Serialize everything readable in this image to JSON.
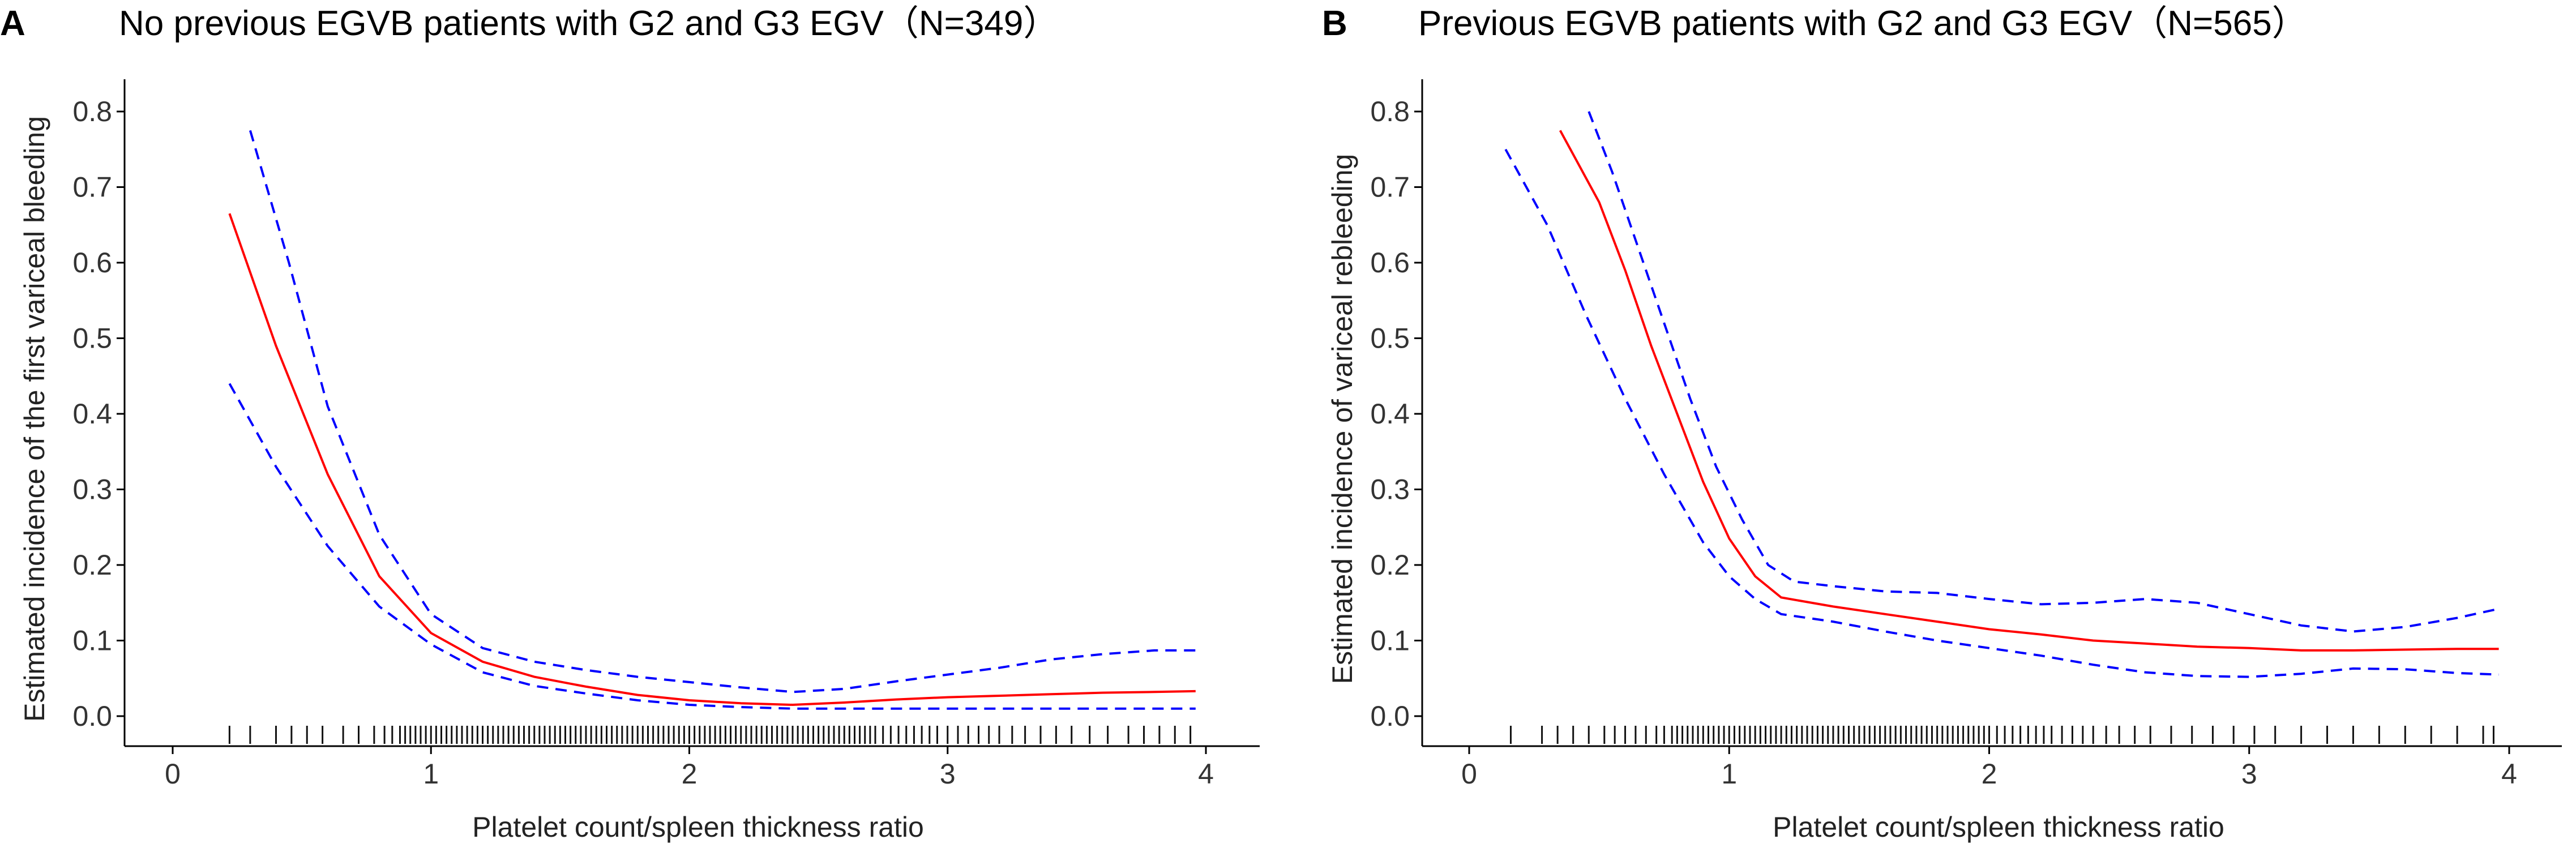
{
  "chart_data": [
    {
      "type": "line",
      "panel_label": "A",
      "title": "No previous EGVB patients with G2 and G3 EGV（N=349）",
      "xlabel": "Platelet count/spleen thickness ratio",
      "ylabel": "Estimated incidence of the first variceal bleeding",
      "xlim": [
        -0.2,
        4.2
      ],
      "ylim": [
        -0.04,
        0.84
      ],
      "x_ticks": [
        0,
        1,
        2,
        3,
        4
      ],
      "y_ticks": [
        0.0,
        0.1,
        0.2,
        0.3,
        0.4,
        0.5,
        0.6,
        0.7,
        0.8
      ],
      "x_tick_labels": [
        "0",
        "1",
        "2",
        "3",
        "4"
      ],
      "y_tick_labels": [
        "0.0",
        "0.1",
        "0.2",
        "0.3",
        "0.4",
        "0.5",
        "0.6",
        "0.7",
        "0.8"
      ],
      "series": [
        {
          "name": "Estimate",
          "style": "solid",
          "color": "#ff0000",
          "x": [
            0.22,
            0.4,
            0.6,
            0.8,
            1.0,
            1.2,
            1.4,
            1.6,
            1.8,
            2.0,
            2.2,
            2.4,
            2.6,
            2.8,
            3.0,
            3.2,
            3.4,
            3.6,
            3.8,
            3.96
          ],
          "y": [
            0.665,
            0.49,
            0.32,
            0.185,
            0.11,
            0.072,
            0.052,
            0.039,
            0.028,
            0.021,
            0.017,
            0.015,
            0.018,
            0.022,
            0.025,
            0.027,
            0.029,
            0.031,
            0.032,
            0.033
          ]
        },
        {
          "name": "Upper 95% CI",
          "style": "dashed",
          "color": "#0000ff",
          "x": [
            0.3,
            0.45,
            0.6,
            0.8,
            1.0,
            1.2,
            1.4,
            1.6,
            1.8,
            2.0,
            2.2,
            2.4,
            2.6,
            2.8,
            3.0,
            3.2,
            3.4,
            3.6,
            3.8,
            3.96
          ],
          "y": [
            0.775,
            0.6,
            0.41,
            0.24,
            0.135,
            0.09,
            0.072,
            0.061,
            0.052,
            0.045,
            0.038,
            0.032,
            0.036,
            0.046,
            0.055,
            0.064,
            0.075,
            0.082,
            0.087,
            0.087
          ]
        },
        {
          "name": "Lower 95% CI",
          "style": "dashed",
          "color": "#0000ff",
          "x": [
            0.22,
            0.4,
            0.6,
            0.8,
            1.0,
            1.2,
            1.4,
            1.6,
            1.8,
            2.0,
            2.2,
            2.4,
            2.6,
            2.8,
            3.0,
            3.2,
            3.4,
            3.6,
            3.8,
            3.96
          ],
          "y": [
            0.44,
            0.33,
            0.225,
            0.145,
            0.095,
            0.058,
            0.04,
            0.03,
            0.021,
            0.015,
            0.012,
            0.01,
            0.01,
            0.01,
            0.01,
            0.01,
            0.01,
            0.01,
            0.01,
            0.01
          ]
        }
      ],
      "rug": [
        0.22,
        0.3,
        0.4,
        0.46,
        0.52,
        0.58,
        0.66,
        0.72,
        0.78,
        0.82,
        0.85,
        0.88,
        0.9,
        0.92,
        0.94,
        0.96,
        0.98,
        1.0,
        1.02,
        1.04,
        1.06,
        1.08,
        1.1,
        1.12,
        1.14,
        1.16,
        1.18,
        1.2,
        1.22,
        1.24,
        1.26,
        1.28,
        1.3,
        1.32,
        1.34,
        1.36,
        1.38,
        1.4,
        1.42,
        1.44,
        1.46,
        1.48,
        1.5,
        1.52,
        1.54,
        1.56,
        1.58,
        1.6,
        1.62,
        1.64,
        1.66,
        1.68,
        1.7,
        1.72,
        1.74,
        1.76,
        1.78,
        1.8,
        1.82,
        1.84,
        1.86,
        1.88,
        1.9,
        1.92,
        1.94,
        1.96,
        1.98,
        2.0,
        2.02,
        2.04,
        2.06,
        2.08,
        2.1,
        2.12,
        2.14,
        2.16,
        2.18,
        2.2,
        2.22,
        2.24,
        2.26,
        2.28,
        2.3,
        2.32,
        2.34,
        2.36,
        2.38,
        2.4,
        2.42,
        2.44,
        2.46,
        2.48,
        2.5,
        2.52,
        2.54,
        2.56,
        2.58,
        2.6,
        2.62,
        2.64,
        2.66,
        2.68,
        2.7,
        2.72,
        2.75,
        2.78,
        2.81,
        2.84,
        2.87,
        2.9,
        2.93,
        2.96,
        3.0,
        3.04,
        3.08,
        3.12,
        3.16,
        3.2,
        3.25,
        3.3,
        3.36,
        3.42,
        3.48,
        3.55,
        3.62,
        3.7,
        3.76,
        3.82,
        3.88,
        3.94
      ]
    },
    {
      "type": "line",
      "panel_label": "B",
      "title": "Previous EGVB patients with G2 and G3 EGV（N=565）",
      "xlabel": "Platelet count/spleen thickness ratio",
      "ylabel": "Estimated incidence of variceal rebleeding",
      "xlim": [
        -0.2,
        4.2
      ],
      "ylim": [
        -0.04,
        0.84
      ],
      "x_ticks": [
        0,
        1,
        2,
        3,
        4
      ],
      "y_ticks": [
        0.0,
        0.1,
        0.2,
        0.3,
        0.4,
        0.5,
        0.6,
        0.7,
        0.8
      ],
      "x_tick_labels": [
        "0",
        "1",
        "2",
        "3",
        "4"
      ],
      "y_tick_labels": [
        "0.0",
        "0.1",
        "0.2",
        "0.3",
        "0.4",
        "0.5",
        "0.6",
        "0.7",
        "0.8"
      ],
      "series": [
        {
          "name": "Estimate",
          "style": "solid",
          "color": "#ff0000",
          "x": [
            0.35,
            0.5,
            0.6,
            0.7,
            0.8,
            0.9,
            1.0,
            1.1,
            1.2,
            1.4,
            1.6,
            1.8,
            2.0,
            2.2,
            2.4,
            2.6,
            2.8,
            3.0,
            3.2,
            3.4,
            3.6,
            3.8,
            3.96
          ],
          "y": [
            0.775,
            0.68,
            0.59,
            0.49,
            0.4,
            0.31,
            0.235,
            0.185,
            0.157,
            0.145,
            0.135,
            0.125,
            0.115,
            0.108,
            0.1,
            0.096,
            0.092,
            0.09,
            0.087,
            0.087,
            0.088,
            0.089,
            0.089
          ]
        },
        {
          "name": "Upper 95% CI",
          "style": "dashed",
          "color": "#0000ff",
          "x": [
            0.46,
            0.55,
            0.65,
            0.75,
            0.85,
            0.95,
            1.05,
            1.15,
            1.25,
            1.4,
            1.6,
            1.8,
            2.0,
            2.2,
            2.4,
            2.6,
            2.8,
            3.0,
            3.2,
            3.4,
            3.6,
            3.8,
            3.96
          ],
          "y": [
            0.8,
            0.72,
            0.62,
            0.52,
            0.42,
            0.33,
            0.26,
            0.2,
            0.178,
            0.172,
            0.165,
            0.163,
            0.155,
            0.148,
            0.15,
            0.155,
            0.15,
            0.135,
            0.12,
            0.112,
            0.118,
            0.13,
            0.142
          ]
        },
        {
          "name": "Lower 95% CI",
          "style": "dashed",
          "color": "#0000ff",
          "x": [
            0.14,
            0.3,
            0.45,
            0.6,
            0.75,
            0.9,
            1.0,
            1.1,
            1.2,
            1.4,
            1.6,
            1.8,
            2.0,
            2.2,
            2.4,
            2.6,
            2.8,
            3.0,
            3.2,
            3.4,
            3.6,
            3.8,
            3.96
          ],
          "y": [
            0.75,
            0.65,
            0.53,
            0.42,
            0.32,
            0.23,
            0.185,
            0.155,
            0.135,
            0.125,
            0.112,
            0.1,
            0.09,
            0.08,
            0.068,
            0.058,
            0.053,
            0.052,
            0.056,
            0.063,
            0.062,
            0.057,
            0.055
          ]
        }
      ],
      "rug": [
        0.16,
        0.28,
        0.34,
        0.4,
        0.46,
        0.52,
        0.56,
        0.6,
        0.64,
        0.68,
        0.72,
        0.75,
        0.78,
        0.8,
        0.82,
        0.84,
        0.86,
        0.88,
        0.9,
        0.92,
        0.94,
        0.96,
        0.98,
        1.0,
        1.02,
        1.04,
        1.06,
        1.08,
        1.1,
        1.12,
        1.14,
        1.16,
        1.18,
        1.2,
        1.22,
        1.24,
        1.26,
        1.28,
        1.3,
        1.32,
        1.34,
        1.36,
        1.38,
        1.4,
        1.42,
        1.44,
        1.46,
        1.48,
        1.5,
        1.52,
        1.54,
        1.56,
        1.58,
        1.6,
        1.62,
        1.64,
        1.66,
        1.68,
        1.7,
        1.72,
        1.74,
        1.76,
        1.78,
        1.8,
        1.82,
        1.84,
        1.86,
        1.88,
        1.9,
        1.92,
        1.94,
        1.96,
        1.98,
        2.0,
        2.03,
        2.06,
        2.09,
        2.12,
        2.15,
        2.18,
        2.21,
        2.24,
        2.28,
        2.32,
        2.36,
        2.4,
        2.45,
        2.5,
        2.56,
        2.62,
        2.7,
        2.78,
        2.86,
        2.94,
        3.02,
        3.1,
        3.2,
        3.3,
        3.4,
        3.5,
        3.6,
        3.7,
        3.8,
        3.9,
        3.94
      ]
    }
  ]
}
